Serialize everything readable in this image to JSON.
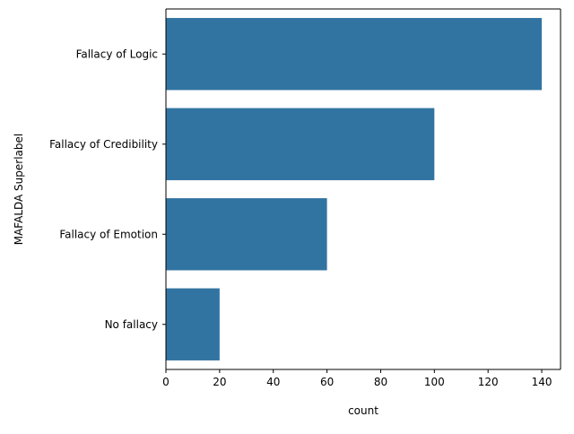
{
  "chart_data": {
    "type": "bar",
    "orientation": "horizontal",
    "categories": [
      "Fallacy of Logic",
      "Fallacy of Credibility",
      "Fallacy of Emotion",
      "No fallacy"
    ],
    "values": [
      140,
      100,
      60,
      20
    ],
    "xlabel": "count",
    "ylabel": "MAFALDA Superlabel",
    "xlim": [
      0,
      147
    ],
    "xticks": [
      0,
      20,
      40,
      60,
      80,
      100,
      120,
      140
    ],
    "grid": false,
    "legend": "none",
    "bar_color": "#3274a1"
  }
}
